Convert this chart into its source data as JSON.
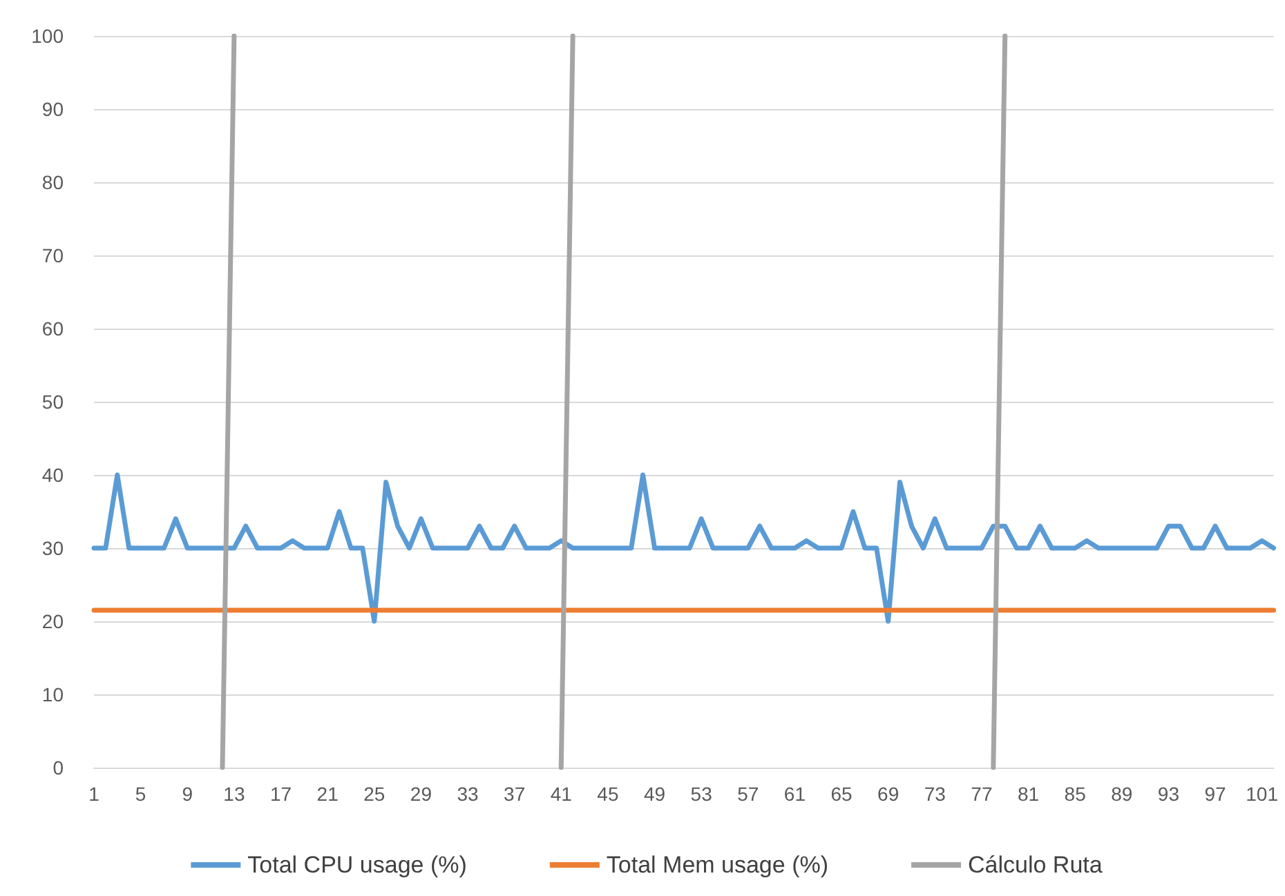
{
  "chart_data": {
    "type": "line",
    "categories": [
      "1",
      null,
      null,
      null,
      "5",
      null,
      null,
      null,
      "9",
      null,
      null,
      null,
      "13",
      null,
      null,
      null,
      "17",
      null,
      null,
      null,
      "21",
      null,
      null,
      null,
      "25",
      null,
      null,
      null,
      "29",
      null,
      null,
      null,
      "33",
      null,
      null,
      null,
      "37",
      null,
      null,
      null,
      "41",
      null,
      null,
      null,
      "45",
      null,
      null,
      null,
      "49",
      null,
      null,
      null,
      "53",
      null,
      null,
      null,
      "57",
      null,
      null,
      null,
      "61",
      null,
      null,
      null,
      "65",
      null,
      null,
      null,
      "69",
      null,
      null,
      null,
      "73",
      null,
      null,
      null,
      "77",
      null,
      null,
      null,
      "81",
      null,
      null,
      null,
      "85",
      null,
      null,
      null,
      "89",
      null,
      null,
      null,
      "93",
      null,
      null,
      null,
      "97",
      null,
      null,
      null,
      "101",
      null
    ],
    "series": [
      {
        "name": "Total CPU usage (%)",
        "color": "#5b9bd5",
        "values": [
          30,
          30,
          40,
          30,
          30,
          30,
          30,
          34,
          30,
          30,
          30,
          30,
          30,
          33,
          30,
          30,
          30,
          31,
          30,
          30,
          30,
          35,
          30,
          30,
          20,
          39,
          33,
          30,
          34,
          30,
          30,
          30,
          30,
          33,
          30,
          30,
          33,
          30,
          30,
          30,
          31,
          30,
          30,
          30,
          30,
          30,
          30,
          40,
          30,
          30,
          30,
          30,
          34,
          30,
          30,
          30,
          30,
          33,
          30,
          30,
          30,
          31,
          30,
          30,
          30,
          35,
          30,
          30,
          20,
          39,
          33,
          30,
          34,
          30,
          30,
          30,
          30,
          33,
          33,
          30,
          30,
          33,
          30,
          30,
          30,
          31,
          30,
          30,
          30,
          30,
          30,
          30,
          33,
          33,
          30,
          30,
          33,
          30,
          30,
          30,
          31,
          30
        ]
      },
      {
        "name": "Total Mem usage (%)",
        "color": "#ed7d31",
        "values": [
          21.5,
          21.5,
          21.5,
          21.5,
          21.5,
          21.5,
          21.5,
          21.5,
          21.5,
          21.5,
          21.5,
          21.5,
          21.5,
          21.5,
          21.5,
          21.5,
          21.5,
          21.5,
          21.5,
          21.5,
          21.5,
          21.5,
          21.5,
          21.5,
          21.5,
          21.5,
          21.5,
          21.5,
          21.5,
          21.5,
          21.5,
          21.5,
          21.5,
          21.5,
          21.5,
          21.5,
          21.5,
          21.5,
          21.5,
          21.5,
          21.5,
          21.5,
          21.5,
          21.5,
          21.5,
          21.5,
          21.5,
          21.5,
          21.5,
          21.5,
          21.5,
          21.5,
          21.5,
          21.5,
          21.5,
          21.5,
          21.5,
          21.5,
          21.5,
          21.5,
          21.5,
          21.5,
          21.5,
          21.5,
          21.5,
          21.5,
          21.5,
          21.5,
          21.5,
          21.5,
          21.5,
          21.5,
          21.5,
          21.5,
          21.5,
          21.5,
          21.5,
          21.5,
          21.5,
          21.5,
          21.5,
          21.5,
          21.5,
          21.5,
          21.5,
          21.5,
          21.5,
          21.5,
          21.5,
          21.5,
          21.5,
          21.5,
          21.5,
          21.5,
          21.5,
          21.5,
          21.5,
          21.5,
          21.5,
          21.5,
          21.5,
          21.5
        ]
      },
      {
        "name": "Cálculo Ruta",
        "color": "#a5a5a5",
        "values": [
          null,
          null,
          null,
          null,
          null,
          null,
          null,
          null,
          null,
          null,
          null,
          0,
          100,
          null,
          null,
          null,
          null,
          null,
          null,
          null,
          null,
          null,
          null,
          null,
          null,
          null,
          null,
          null,
          null,
          null,
          null,
          null,
          null,
          null,
          null,
          null,
          null,
          null,
          null,
          null,
          0,
          100,
          null,
          null,
          null,
          null,
          null,
          null,
          null,
          null,
          null,
          null,
          null,
          null,
          null,
          null,
          null,
          null,
          null,
          null,
          null,
          null,
          null,
          null,
          null,
          null,
          null,
          null,
          null,
          null,
          null,
          null,
          null,
          null,
          null,
          null,
          null,
          0,
          100,
          null,
          null,
          null,
          null,
          null,
          null,
          null,
          null,
          null,
          null,
          null,
          null,
          null,
          null,
          null,
          null,
          null,
          null,
          null,
          null,
          null,
          null,
          null
        ]
      }
    ],
    "ylim": [
      0,
      100
    ],
    "yticks": [
      0,
      10,
      20,
      30,
      40,
      50,
      60,
      70,
      80,
      90,
      100
    ],
    "grid": "y",
    "legend": "bottom",
    "marker": "none",
    "line_style": "solid"
  }
}
